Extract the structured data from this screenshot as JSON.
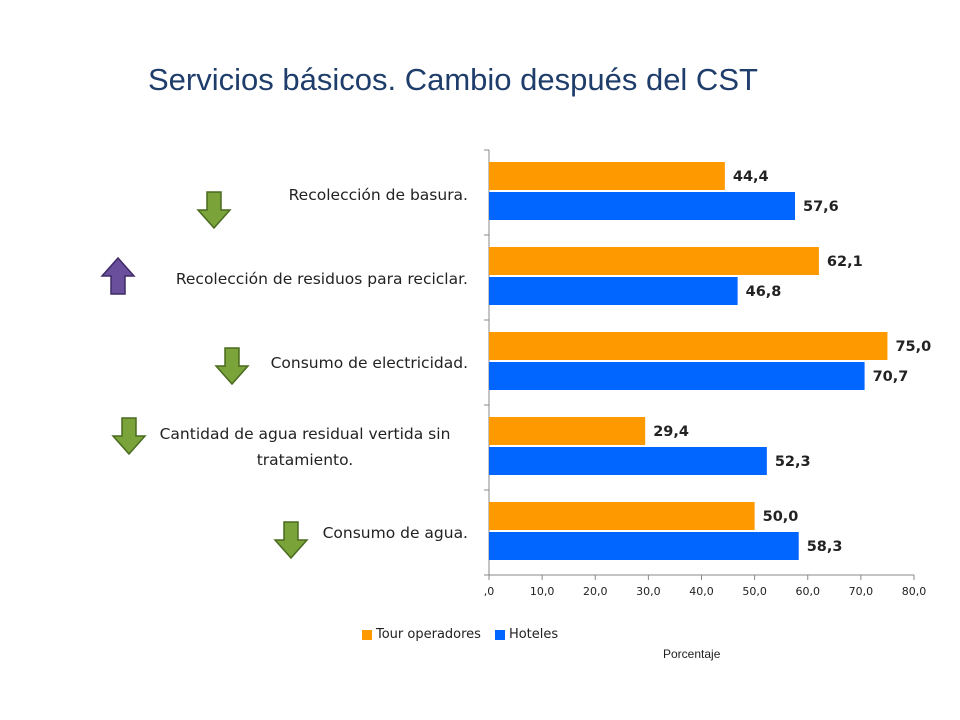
{
  "title": "Servicios básicos. Cambio después del CST",
  "chart_data": {
    "type": "bar",
    "orientation": "horizontal",
    "categories": [
      "Recolección de basura.",
      "Recolección de residuos para reciclar.",
      "Consumo de electricidad.",
      "Cantidad de agua residual vertida sin tratamiento.",
      "Consumo de agua."
    ],
    "series": [
      {
        "name": "Tour operadores",
        "color": "#ff9900",
        "values": [
          44.4,
          62.1,
          75.0,
          29.4,
          50.0
        ],
        "labels": [
          "44,4",
          "62,1",
          "75,0",
          "29,4",
          "50,0"
        ]
      },
      {
        "name": "Hoteles",
        "color": "#0066ff",
        "values": [
          57.6,
          46.8,
          70.7,
          52.3,
          58.3
        ],
        "labels": [
          "57,6",
          "46,8",
          "70,7",
          "52,3",
          "58,3"
        ]
      }
    ],
    "xlim": [
      0,
      80
    ],
    "xticks": [
      ",0",
      "10,0",
      "20,0",
      "30,0",
      "40,0",
      "50,0",
      "60,0",
      "70,0",
      "80,0"
    ],
    "xlabel": "Porcentaje",
    "legend": "bottom",
    "indicators": [
      {
        "direction": "down",
        "color": "#7aa33a"
      },
      {
        "direction": "up",
        "color": "#6a4f9c"
      },
      {
        "direction": "down",
        "color": "#7aa33a"
      },
      {
        "direction": "down",
        "color": "#7aa33a"
      },
      {
        "direction": "down",
        "color": "#7aa33a"
      }
    ]
  }
}
